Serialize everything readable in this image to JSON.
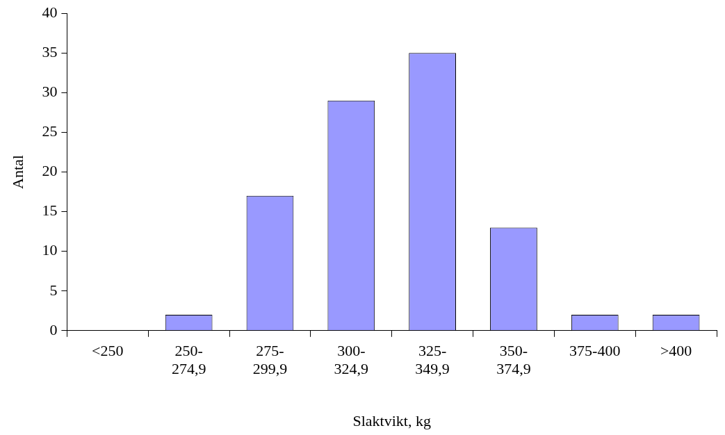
{
  "chart_data": {
    "type": "bar",
    "xlabel": "Slaktvikt, kg",
    "ylabel": "Antal",
    "categories": [
      "<250",
      "250-\n274,9",
      "275-\n299,9",
      "300-\n324,9",
      "325-\n349,9",
      "350-\n374,9",
      "375-400",
      ">400"
    ],
    "values": [
      0,
      2,
      17,
      29,
      35,
      13,
      2,
      2
    ],
    "color": "#9999ff",
    "ylim": [
      0,
      40
    ],
    "yticks": [
      0,
      5,
      10,
      15,
      20,
      25,
      30,
      35,
      40
    ],
    "grid": false,
    "legend": false
  }
}
